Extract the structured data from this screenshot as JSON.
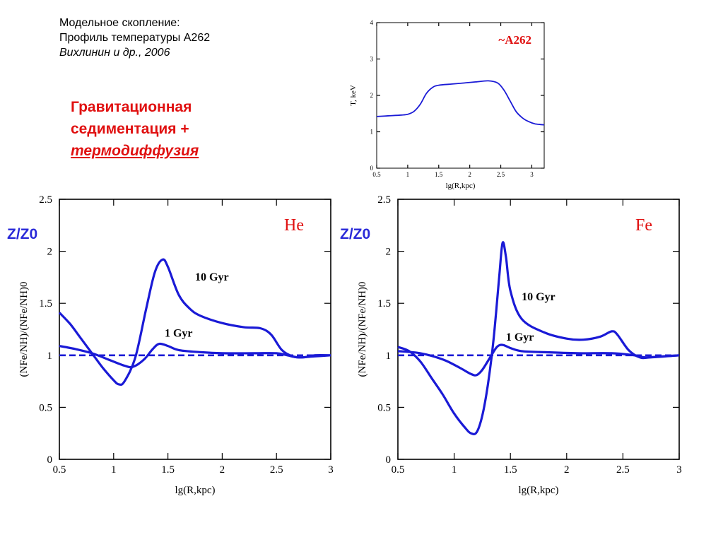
{
  "header": {
    "line1": "Модельное скопление:",
    "line2": "Профиль температуры A262",
    "line3": "Вихлинин и др., 2006"
  },
  "note": {
    "line1": "Гравитационная",
    "line2": "седиментация +",
    "line3": "термодиффузия"
  },
  "colors": {
    "curve": "#1a1ad6",
    "label": "#e01010",
    "zlabel": "#2a2ad8",
    "axis": "#000000"
  },
  "chart_data": [
    {
      "id": "temp",
      "type": "line",
      "annotation": "~A262",
      "xlabel": "lg(R,kpc)",
      "ylabel": "T, keV",
      "xlim": [
        0.5,
        3.2
      ],
      "ylim": [
        0,
        4
      ],
      "xticks": [
        "0.5",
        "1",
        "1.5",
        "2",
        "2.5",
        "3"
      ],
      "yticks": [
        "0",
        "1",
        "2",
        "3",
        "4"
      ],
      "series": [
        {
          "x": [
            0.5,
            0.7,
            0.9,
            1.0,
            1.1,
            1.2,
            1.3,
            1.4,
            1.5,
            1.7,
            1.9,
            2.1,
            2.3,
            2.45,
            2.55,
            2.65,
            2.75,
            2.85,
            2.95,
            3.05,
            3.2
          ],
          "y": [
            1.42,
            1.44,
            1.46,
            1.48,
            1.56,
            1.75,
            2.05,
            2.22,
            2.28,
            2.31,
            2.34,
            2.37,
            2.4,
            2.34,
            2.15,
            1.85,
            1.55,
            1.38,
            1.28,
            1.22,
            1.19
          ]
        }
      ]
    },
    {
      "id": "he",
      "type": "line",
      "panel_label": "He",
      "ylabel_left": "Z/Z0",
      "xlabel": "lg(R,kpc)",
      "ylabel": "(NFe/NH)/(NFe/NH)0",
      "xlim": [
        0.5,
        3
      ],
      "ylim": [
        0,
        2.5
      ],
      "xticks": [
        "0.5",
        "1",
        "1.5",
        "2",
        "2.5",
        "3"
      ],
      "yticks": [
        "0",
        "0.5",
        "1",
        "1.5",
        "2",
        "2.5"
      ],
      "reference_y": 1,
      "series": [
        {
          "label": "10 Gyr",
          "label_at": [
            1.75,
            1.72
          ],
          "x": [
            0.5,
            0.6,
            0.7,
            0.8,
            0.9,
            1.0,
            1.05,
            1.1,
            1.2,
            1.3,
            1.38,
            1.45,
            1.5,
            1.6,
            1.7,
            1.8,
            2.0,
            2.2,
            2.35,
            2.45,
            2.55,
            2.65,
            2.75,
            2.85,
            3.0
          ],
          "y": [
            1.41,
            1.3,
            1.16,
            1.02,
            0.88,
            0.76,
            0.72,
            0.75,
            0.98,
            1.45,
            1.8,
            1.92,
            1.85,
            1.58,
            1.45,
            1.38,
            1.31,
            1.27,
            1.26,
            1.2,
            1.05,
            0.99,
            0.98,
            1.0,
            1.0
          ]
        },
        {
          "label": "1 Gyr",
          "label_at": [
            1.47,
            1.18
          ],
          "x": [
            0.5,
            0.65,
            0.8,
            0.95,
            1.1,
            1.18,
            1.28,
            1.36,
            1.42,
            1.5,
            1.6,
            1.8,
            2.0,
            2.3,
            2.5,
            2.6,
            2.7,
            2.85,
            3.0
          ],
          "y": [
            1.09,
            1.06,
            1.02,
            0.96,
            0.9,
            0.89,
            0.96,
            1.06,
            1.11,
            1.09,
            1.05,
            1.03,
            1.02,
            1.02,
            1.02,
            1.0,
            0.98,
            0.99,
            1.0
          ]
        }
      ]
    },
    {
      "id": "fe",
      "type": "line",
      "panel_label": "Fe",
      "ylabel_left": "Z/Z0",
      "xlabel": "lg(R,kpc)",
      "ylabel": "(NFe/NH)/(NFe/NH)0",
      "xlim": [
        0.5,
        3
      ],
      "ylim": [
        0,
        2.5
      ],
      "xticks": [
        "0.5",
        "1",
        "1.5",
        "2",
        "2.5",
        "3"
      ],
      "yticks": [
        "0",
        "0.5",
        "1",
        "1.5",
        "2",
        "2.5"
      ],
      "reference_y": 1,
      "series": [
        {
          "label": "10 Gyr",
          "label_at": [
            1.6,
            1.53
          ],
          "x": [
            0.5,
            0.6,
            0.7,
            0.8,
            0.9,
            1.0,
            1.1,
            1.15,
            1.2,
            1.25,
            1.3,
            1.35,
            1.4,
            1.43,
            1.46,
            1.5,
            1.6,
            1.8,
            2.0,
            2.15,
            2.3,
            2.4,
            2.45,
            2.55,
            2.65,
            2.75,
            3.0
          ],
          "y": [
            1.08,
            1.04,
            0.94,
            0.78,
            0.62,
            0.44,
            0.3,
            0.25,
            0.26,
            0.42,
            0.72,
            1.15,
            1.75,
            2.08,
            1.95,
            1.62,
            1.35,
            1.22,
            1.16,
            1.15,
            1.18,
            1.23,
            1.2,
            1.05,
            0.98,
            0.98,
            1.0
          ]
        },
        {
          "label": "1 Gyr",
          "label_at": [
            1.46,
            1.14
          ],
          "x": [
            0.5,
            0.7,
            0.9,
            1.05,
            1.15,
            1.2,
            1.25,
            1.32,
            1.38,
            1.43,
            1.5,
            1.6,
            1.8,
            2.1,
            2.4,
            2.6,
            2.7,
            2.85,
            3.0
          ],
          "y": [
            1.04,
            1.02,
            0.96,
            0.88,
            0.82,
            0.81,
            0.86,
            0.98,
            1.08,
            1.1,
            1.07,
            1.04,
            1.03,
            1.02,
            1.02,
            1.0,
            0.98,
            0.99,
            1.0
          ]
        }
      ]
    }
  ]
}
